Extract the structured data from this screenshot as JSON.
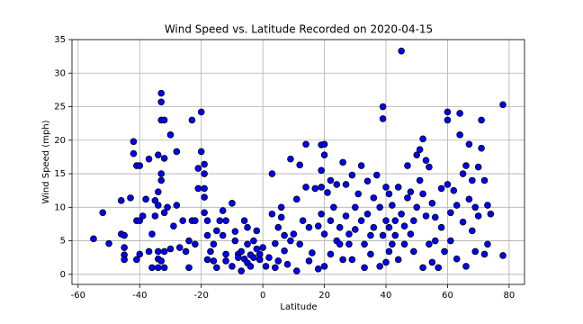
{
  "chart_data": {
    "type": "scatter",
    "title": "Wind Speed vs. Latitude Recorded on 2020-04-15",
    "x_label": "Latitude",
    "y_label": "Wind Speed (mph)",
    "color": "#0000ff",
    "edge_color": "#000000",
    "grid": true,
    "xlim": [
      -62,
      85
    ],
    "ylim": [
      -1.5,
      35
    ],
    "xticks": [
      -60,
      -40,
      -20,
      0,
      20,
      40,
      60,
      80
    ],
    "yticks": [
      0,
      5,
      10,
      15,
      20,
      25,
      30,
      35
    ],
    "x": [
      -55,
      -52,
      -50,
      -46,
      -46,
      -45,
      -45,
      -45,
      -45,
      -43,
      -42,
      -42,
      -41,
      -40,
      -41,
      -40,
      -39,
      -41,
      -40,
      -38,
      -37,
      -37,
      -36,
      -36,
      -35,
      -35,
      -34,
      -34,
      -34,
      -34,
      -34,
      -34,
      -33,
      -33,
      -33,
      -32,
      -33,
      -33,
      -32,
      -32,
      -33,
      -32,
      -32,
      -31,
      -30,
      -30,
      -29,
      -28,
      -28,
      -27,
      -26,
      -25,
      -24,
      -24,
      -23,
      -23,
      -22,
      -22,
      -21,
      -21,
      -20,
      -20,
      -19,
      -19,
      -19,
      -19,
      -19,
      -18,
      -18,
      -18,
      -17,
      -16,
      -16,
      -15,
      -15,
      -14,
      -13,
      -13,
      -12,
      -12,
      -12,
      -10,
      -10,
      -9,
      -9,
      -8,
      -8,
      -7,
      -7,
      -6,
      -6,
      -5,
      -5,
      -5,
      -4,
      -4,
      -3,
      -3,
      -2,
      -2,
      -1,
      -1,
      0,
      1,
      2,
      3,
      3,
      4,
      4,
      5,
      5,
      6,
      6,
      7,
      7,
      8,
      9,
      9,
      10,
      11,
      11,
      12,
      12,
      13,
      14,
      14,
      15,
      15,
      16,
      17,
      18,
      18,
      19,
      19,
      19,
      19,
      20,
      20,
      20,
      20,
      21,
      22,
      22,
      22,
      23,
      24,
      24,
      25,
      25,
      26,
      26,
      27,
      27,
      28,
      28,
      29,
      29,
      30,
      30,
      31,
      32,
      32,
      33,
      33,
      34,
      34,
      35,
      35,
      36,
      36,
      37,
      38,
      38,
      39,
      39,
      39,
      40,
      40,
      40,
      41,
      41,
      41,
      42,
      42,
      43,
      43,
      44,
      44,
      45,
      45,
      46,
      46,
      47,
      47,
      48,
      48,
      49,
      49,
      50,
      50,
      51,
      51,
      52,
      52,
      52,
      53,
      53,
      54,
      54,
      55,
      55,
      56,
      56,
      57,
      58,
      58,
      59,
      60,
      60,
      60,
      61,
      61,
      62,
      63,
      63,
      64,
      64,
      65,
      65,
      66,
      66,
      67,
      67,
      68,
      68,
      69,
      69,
      70,
      70,
      71,
      71,
      72,
      72,
      73,
      73,
      74,
      78,
      78
    ],
    "values": [
      5.3,
      9.2,
      4.6,
      6,
      11,
      4,
      2.9,
      2.2,
      5.8,
      11.4,
      19.8,
      18,
      16.2,
      16.2,
      8,
      8,
      8.7,
      2.2,
      3,
      11.2,
      17.2,
      3.4,
      1,
      6,
      11,
      8.7,
      17.8,
      12.3,
      10.3,
      3.4,
      2.3,
      1,
      25.7,
      27,
      23,
      23,
      15,
      14,
      9.2,
      1,
      2,
      3.4,
      17.3,
      10,
      20.8,
      3.8,
      7.2,
      18.3,
      10.3,
      4,
      8,
      3.4,
      5,
      1,
      23,
      8,
      4.5,
      8,
      15.8,
      12.8,
      24.2,
      18.3,
      16.4,
      15,
      12.8,
      11.5,
      9.2,
      2.2,
      5.8,
      8,
      3.4,
      4.5,
      2,
      6.5,
      1,
      8,
      9.5,
      5.8,
      3,
      2,
      8,
      1.2,
      10.6,
      5,
      6.4,
      3,
      2.5,
      3.4,
      0.5,
      2.3,
      8,
      4.5,
      7,
      1.7,
      2.9,
      1.2,
      2.5,
      5,
      3.8,
      6.5,
      3,
      2.2,
      4,
      1.2,
      2.5,
      15,
      9,
      4.6,
      1,
      7,
      2,
      10,
      8.5,
      5.8,
      3.5,
      1.5,
      17.2,
      5,
      6,
      11.2,
      0.5,
      4.5,
      16.3,
      8,
      19.4,
      13,
      7,
      2,
      3.2,
      12.8,
      7.2,
      0.8,
      19.3,
      15.5,
      13,
      9,
      19.4,
      17.8,
      6,
      1.2,
      12.2,
      14,
      8,
      3,
      10,
      13.4,
      5,
      7,
      4.5,
      16.7,
      2.2,
      13.4,
      8.7,
      6,
      4.5,
      14.8,
      2.2,
      10,
      6.7,
      12,
      16.2,
      8,
      1,
      4.5,
      13.9,
      9,
      5.8,
      3,
      11.4,
      7,
      14.8,
      10,
      1.2,
      23.2,
      25,
      5.8,
      13,
      8,
      1.8,
      12,
      7,
      3.4,
      10.3,
      4.5,
      8,
      5.8,
      13,
      2.2,
      9,
      33.3,
      7.2,
      4.5,
      16.2,
      11.4,
      12.3,
      6,
      8,
      3.4,
      17.8,
      10,
      18.6,
      14,
      20.2,
      12,
      1,
      17,
      8.7,
      16,
      4.5,
      10.6,
      1.8,
      5,
      8.5,
      1,
      12.8,
      7,
      3.4,
      24.2,
      23,
      13.4,
      5,
      9.2,
      12.5,
      10.3,
      2.3,
      24,
      20.8,
      15,
      7.8,
      16.2,
      1.2,
      19.4,
      11.2,
      14,
      6.5,
      3.4,
      10,
      16,
      8.7,
      18.8,
      23,
      14,
      3,
      4.5,
      10.3,
      9,
      25.3,
      2.8
    ]
  }
}
